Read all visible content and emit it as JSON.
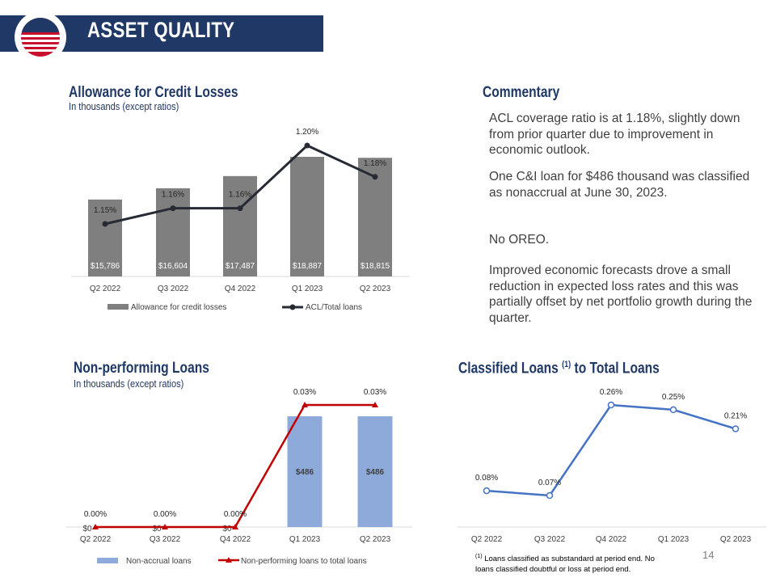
{
  "header": {
    "title": "ASSET QUALITY"
  },
  "acl": {
    "title": "Allowance for Credit Losses",
    "subtitle": "In thousands  (except ratios)"
  },
  "commentary": {
    "title": "Commentary",
    "paragraphs": [
      "ACL coverage ratio is at 1.18%, slightly down from prior quarter due to improvement in economic outlook.",
      "One C&I loan for $486 thousand was classified as nonaccrual at June 30, 2023.",
      "No OREO.",
      "Improved economic forecasts drove a small reduction in expected loss rates and this was partially offset by net portfolio growth during the quarter."
    ]
  },
  "npl": {
    "title": "Non-performing Loans",
    "subtitle": "In thousands  (except ratios)"
  },
  "classified": {
    "title_main": "Classified Loans ",
    "title_sup": "(1)",
    "title_tail": " to Total Loans"
  },
  "footnote": {
    "marker": "(1)",
    "text": "Loans classified as substandard at period end. No loans classified doubtful or loss at period end."
  },
  "page_number": "14",
  "colors": {
    "navy": "#1f3866",
    "bar_gray": "#7f7f7f",
    "line_dark": "#262b33",
    "bar_blue": "#8eaadb",
    "red": "#c00000",
    "line_blue": "#4472c4"
  },
  "chart_data": [
    {
      "id": "acl",
      "type": "bar",
      "categories": [
        "Q2 2022",
        "Q3 2022",
        "Q4 2022",
        "Q1 2023",
        "Q2 2023"
      ],
      "series": [
        {
          "name": "Allowance for credit losses",
          "kind": "bar",
          "values": [
            15786,
            16604,
            17487,
            18887,
            18815
          ],
          "labels": [
            "$15,786",
            "$16,604",
            "$17,487",
            "$18,887",
            "$18,815"
          ]
        },
        {
          "name": "ACL/Total loans",
          "kind": "line",
          "values": [
            1.15,
            1.16,
            1.16,
            1.2,
            1.18
          ],
          "labels": [
            "1.15%",
            "1.16%",
            "1.16%",
            "1.20%",
            "1.18%"
          ]
        }
      ],
      "legend": "bottom"
    },
    {
      "id": "npl",
      "type": "bar",
      "categories": [
        "Q2 2022",
        "Q3 2022",
        "Q4 2022",
        "Q1 2023",
        "Q2 2023"
      ],
      "series": [
        {
          "name": "Non-accrual loans",
          "kind": "bar",
          "values": [
            0,
            0,
            0,
            486,
            486
          ],
          "labels": [
            "$0",
            "$0",
            "$0",
            "$486",
            "$486"
          ]
        },
        {
          "name": "Non-performing loans to total loans",
          "kind": "line",
          "values": [
            0.0,
            0.0,
            0.0,
            0.03,
            0.03
          ],
          "labels": [
            "0.00%",
            "0.00%",
            "0.00%",
            "0.03%",
            "0.03%"
          ]
        }
      ],
      "legend": "bottom"
    },
    {
      "id": "classified",
      "type": "line",
      "categories": [
        "Q2 2022",
        "Q3 2022",
        "Q4 2022",
        "Q1 2023",
        "Q2 2023"
      ],
      "series": [
        {
          "name": "Classified loans to total loans",
          "values": [
            0.08,
            0.07,
            0.26,
            0.25,
            0.21
          ],
          "labels": [
            "0.08%",
            "0.07%",
            "0.26%",
            "0.25%",
            "0.21%"
          ]
        }
      ]
    }
  ]
}
